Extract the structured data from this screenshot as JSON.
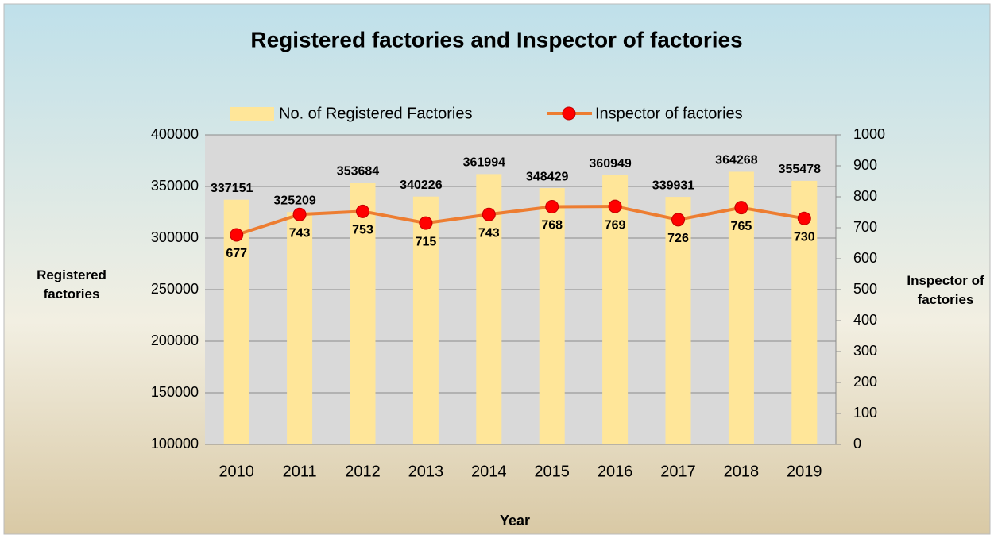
{
  "chart_data": {
    "type": "bar",
    "title": "Registered factories and Inspector of factories",
    "x_label": "Year",
    "y_label": "Registered factories",
    "y2_label": "Inspector of factories",
    "categories": [
      "2010",
      "2011",
      "2012",
      "2013",
      "2014",
      "2015",
      "2016",
      "2017",
      "2018",
      "2019"
    ],
    "series": [
      {
        "name": "No. of Registered Factories",
        "type": "bar",
        "color": "#ffe699",
        "values": [
          337151,
          325209,
          353684,
          340226,
          361994,
          348429,
          360949,
          339931,
          364268,
          355478
        ]
      },
      {
        "name": "Inspector of factories",
        "type": "line",
        "axis": "y2",
        "color": "#ed7d31",
        "marker_color": "#ff0000",
        "values": [
          677,
          743,
          753,
          715,
          743,
          768,
          769,
          726,
          765,
          730
        ]
      }
    ],
    "ylim": [
      100000,
      400000
    ],
    "yticks": [
      100000,
      150000,
      200000,
      250000,
      300000,
      350000,
      400000
    ],
    "y2lim": [
      0,
      1000
    ],
    "y2ticks": [
      0,
      100,
      200,
      300,
      400,
      500,
      600,
      700,
      800,
      900,
      1000
    ],
    "grid": true,
    "legend": "top"
  }
}
